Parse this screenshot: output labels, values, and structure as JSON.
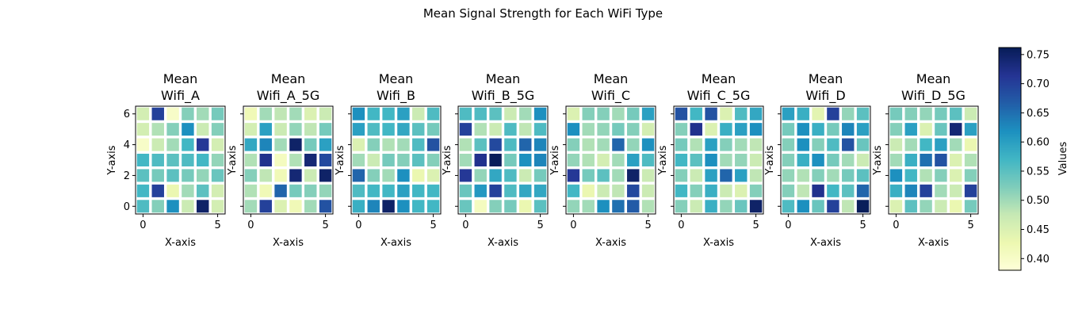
{
  "figure": {
    "title": "Mean Signal Strength for Each WiFi Type"
  },
  "colorbar": {
    "label": "Values",
    "min": 0.38,
    "max": 0.762,
    "ticks": [
      "0.40",
      "0.45",
      "0.50",
      "0.55",
      "0.60",
      "0.65",
      "0.70",
      "0.75"
    ],
    "tick_values": [
      0.4,
      0.45,
      0.5,
      0.55,
      0.6,
      0.65,
      0.7,
      0.75
    ],
    "colormap": "YlGnBu"
  },
  "chart_data": [
    {
      "type": "heatmap",
      "title_line1": "Mean",
      "title_line2": "Wifi_A",
      "xlabel": "X-axis",
      "ylabel": "Y-axis",
      "xticks": [
        "0",
        "5"
      ],
      "yticks": [
        "0",
        "2",
        "4",
        "6"
      ],
      "x": [
        0,
        1,
        2,
        3,
        4,
        5
      ],
      "y": [
        0,
        1,
        2,
        3,
        4,
        5,
        6
      ],
      "values": [
        [
          0.56,
          0.52,
          0.62,
          0.47,
          0.75,
          0.46
        ],
        [
          0.57,
          0.7,
          0.43,
          0.5,
          0.55,
          0.46
        ],
        [
          0.55,
          0.53,
          0.55,
          0.53,
          0.51,
          0.54
        ],
        [
          0.57,
          0.56,
          0.55,
          0.56,
          0.57,
          0.51
        ],
        [
          0.4,
          0.47,
          0.5,
          0.57,
          0.71,
          0.46
        ],
        [
          0.46,
          0.49,
          0.52,
          0.62,
          0.47,
          0.52
        ],
        [
          0.46,
          0.7,
          0.4,
          0.52,
          0.5,
          0.53
        ]
      ]
    },
    {
      "type": "heatmap",
      "title_line1": "Mean",
      "title_line2": "Wifi_A_5G",
      "xlabel": "X-axis",
      "ylabel": "Y-axis",
      "xticks": [
        "0",
        "5"
      ],
      "yticks": [
        "0",
        "2",
        "4",
        "6"
      ],
      "x": [
        0,
        1,
        2,
        3,
        4,
        5
      ],
      "y": [
        0,
        1,
        2,
        3,
        4,
        5,
        6
      ],
      "values": [
        [
          0.5,
          0.7,
          0.45,
          0.42,
          0.5,
          0.68
        ],
        [
          0.49,
          0.42,
          0.66,
          0.53,
          0.52,
          0.51
        ],
        [
          0.52,
          0.48,
          0.42,
          0.74,
          0.47,
          0.75
        ],
        [
          0.49,
          0.72,
          0.41,
          0.49,
          0.74,
          0.69
        ],
        [
          0.59,
          0.63,
          0.5,
          0.75,
          0.53,
          0.6
        ],
        [
          0.46,
          0.6,
          0.47,
          0.51,
          0.48,
          0.53
        ],
        [
          0.42,
          0.5,
          0.48,
          0.5,
          0.45,
          0.47
        ]
      ]
    },
    {
      "type": "heatmap",
      "title_line1": "Mean",
      "title_line2": "Wifi_B",
      "xlabel": "X-axis",
      "ylabel": "Y-axis",
      "xticks": [
        "0",
        "5"
      ],
      "yticks": [
        "0",
        "2",
        "4",
        "6"
      ],
      "x": [
        0,
        1,
        2,
        3,
        4,
        5
      ],
      "y": [
        0,
        1,
        2,
        3,
        4,
        5,
        6
      ],
      "values": [
        [
          0.58,
          0.63,
          0.75,
          0.62,
          0.57,
          0.57
        ],
        [
          0.56,
          0.57,
          0.57,
          0.6,
          0.57,
          0.57
        ],
        [
          0.66,
          0.52,
          0.5,
          0.62,
          0.43,
          0.45
        ],
        [
          0.5,
          0.47,
          0.53,
          0.52,
          0.55,
          0.52
        ],
        [
          0.45,
          0.52,
          0.49,
          0.5,
          0.56,
          0.68
        ],
        [
          0.6,
          0.56,
          0.57,
          0.59,
          0.55,
          0.53
        ],
        [
          0.62,
          0.57,
          0.57,
          0.6,
          0.47,
          0.56
        ]
      ]
    },
    {
      "type": "heatmap",
      "title_line1": "Mean",
      "title_line2": "Wifi_B_5G",
      "xlabel": "X-axis",
      "ylabel": "Y-axis",
      "xticks": [
        "0",
        "5"
      ],
      "yticks": [
        "0",
        "2",
        "4",
        "6"
      ],
      "x": [
        0,
        1,
        2,
        3,
        4,
        5
      ],
      "y": [
        0,
        1,
        2,
        3,
        4,
        5,
        6
      ],
      "values": [
        [
          0.54,
          0.41,
          0.52,
          0.53,
          0.43,
          0.55
        ],
        [
          0.54,
          0.61,
          0.7,
          0.56,
          0.59,
          0.59
        ],
        [
          0.71,
          0.51,
          0.59,
          0.56,
          0.47,
          0.53
        ],
        [
          0.5,
          0.72,
          0.76,
          0.53,
          0.62,
          0.63
        ],
        [
          0.49,
          0.55,
          0.69,
          0.56,
          0.66,
          0.63
        ],
        [
          0.7,
          0.49,
          0.47,
          0.56,
          0.48,
          0.56
        ],
        [
          0.56,
          0.56,
          0.55,
          0.47,
          0.5,
          0.62
        ]
      ]
    },
    {
      "type": "heatmap",
      "title_line1": "Mean",
      "title_line2": "Wifi_C",
      "xlabel": "X-axis",
      "ylabel": "Y-axis",
      "xticks": [
        "0",
        "5"
      ],
      "yticks": [
        "0",
        "2",
        "4",
        "6"
      ],
      "x": [
        0,
        1,
        2,
        3,
        4,
        5
      ],
      "y": [
        0,
        1,
        2,
        3,
        4,
        5,
        6
      ],
      "values": [
        [
          0.51,
          0.5,
          0.62,
          0.65,
          0.67,
          0.49
        ],
        [
          0.57,
          0.43,
          0.47,
          0.48,
          0.69,
          0.47
        ],
        [
          0.71,
          0.53,
          0.55,
          0.5,
          0.75,
          0.47
        ],
        [
          0.51,
          0.49,
          0.46,
          0.5,
          0.6,
          0.56
        ],
        [
          0.52,
          0.49,
          0.5,
          0.66,
          0.51,
          0.62
        ],
        [
          0.62,
          0.5,
          0.51,
          0.53,
          0.52,
          0.46
        ],
        [
          0.45,
          0.52,
          0.52,
          0.5,
          0.53,
          0.6
        ]
      ]
    },
    {
      "type": "heatmap",
      "title_line1": "Mean",
      "title_line2": "Wifi_C_5G",
      "xlabel": "X-axis",
      "ylabel": "Y-axis",
      "xticks": [
        "0",
        "5"
      ],
      "yticks": [
        "0",
        "2",
        "4",
        "6"
      ],
      "x": [
        0,
        1,
        2,
        3,
        4,
        5
      ],
      "y": [
        0,
        1,
        2,
        3,
        4,
        5,
        6
      ],
      "values": [
        [
          0.52,
          0.47,
          0.58,
          0.51,
          0.54,
          0.75
        ],
        [
          0.57,
          0.52,
          0.58,
          0.47,
          0.45,
          0.52
        ],
        [
          0.52,
          0.47,
          0.6,
          0.66,
          0.6,
          0.48
        ],
        [
          0.57,
          0.55,
          0.62,
          0.5,
          0.51,
          0.47
        ],
        [
          0.53,
          0.49,
          0.6,
          0.52,
          0.5,
          0.48
        ],
        [
          0.52,
          0.72,
          0.45,
          0.58,
          0.6,
          0.62
        ],
        [
          0.68,
          0.57,
          0.68,
          0.45,
          0.56,
          0.59
        ]
      ]
    },
    {
      "type": "heatmap",
      "title_line1": "Mean",
      "title_line2": "Wifi_D",
      "xlabel": "X-axis",
      "ylabel": "Y-axis",
      "xticks": [
        "0",
        "5"
      ],
      "yticks": [
        "0",
        "2",
        "4",
        "6"
      ],
      "x": [
        0,
        1,
        2,
        3,
        4,
        5
      ],
      "y": [
        0,
        1,
        2,
        3,
        4,
        5,
        6
      ],
      "values": [
        [
          0.56,
          0.62,
          0.54,
          0.7,
          0.48,
          0.76
        ],
        [
          0.52,
          0.48,
          0.72,
          0.57,
          0.55,
          0.66
        ],
        [
          0.51,
          0.49,
          0.52,
          0.5,
          0.53,
          0.55
        ],
        [
          0.52,
          0.58,
          0.62,
          0.53,
          0.5,
          0.47
        ],
        [
          0.52,
          0.62,
          0.52,
          0.56,
          0.68,
          0.54
        ],
        [
          0.53,
          0.62,
          0.58,
          0.53,
          0.63,
          0.6
        ],
        [
          0.6,
          0.58,
          0.44,
          0.7,
          0.51,
          0.55
        ]
      ]
    },
    {
      "type": "heatmap",
      "title_line1": "Mean",
      "title_line2": "Wifi_D_5G",
      "xlabel": "X-axis",
      "ylabel": "Y-axis",
      "xticks": [
        "0",
        "5"
      ],
      "yticks": [
        "0",
        "2",
        "4",
        "6"
      ],
      "x": [
        0,
        1,
        2,
        3,
        4,
        5
      ],
      "y": [
        0,
        1,
        2,
        3,
        4,
        5,
        6
      ],
      "values": [
        [
          0.45,
          0.55,
          0.51,
          0.47,
          0.43,
          0.53
        ],
        [
          0.58,
          0.63,
          0.7,
          0.5,
          0.47,
          0.7
        ],
        [
          0.62,
          0.57,
          0.49,
          0.52,
          0.45,
          0.52
        ],
        [
          0.5,
          0.58,
          0.65,
          0.68,
          0.45,
          0.49
        ],
        [
          0.47,
          0.5,
          0.57,
          0.6,
          0.5,
          0.43
        ],
        [
          0.52,
          0.6,
          0.45,
          0.54,
          0.74,
          0.6
        ],
        [
          0.53,
          0.52,
          0.51,
          0.53,
          0.55,
          0.47
        ]
      ]
    }
  ]
}
